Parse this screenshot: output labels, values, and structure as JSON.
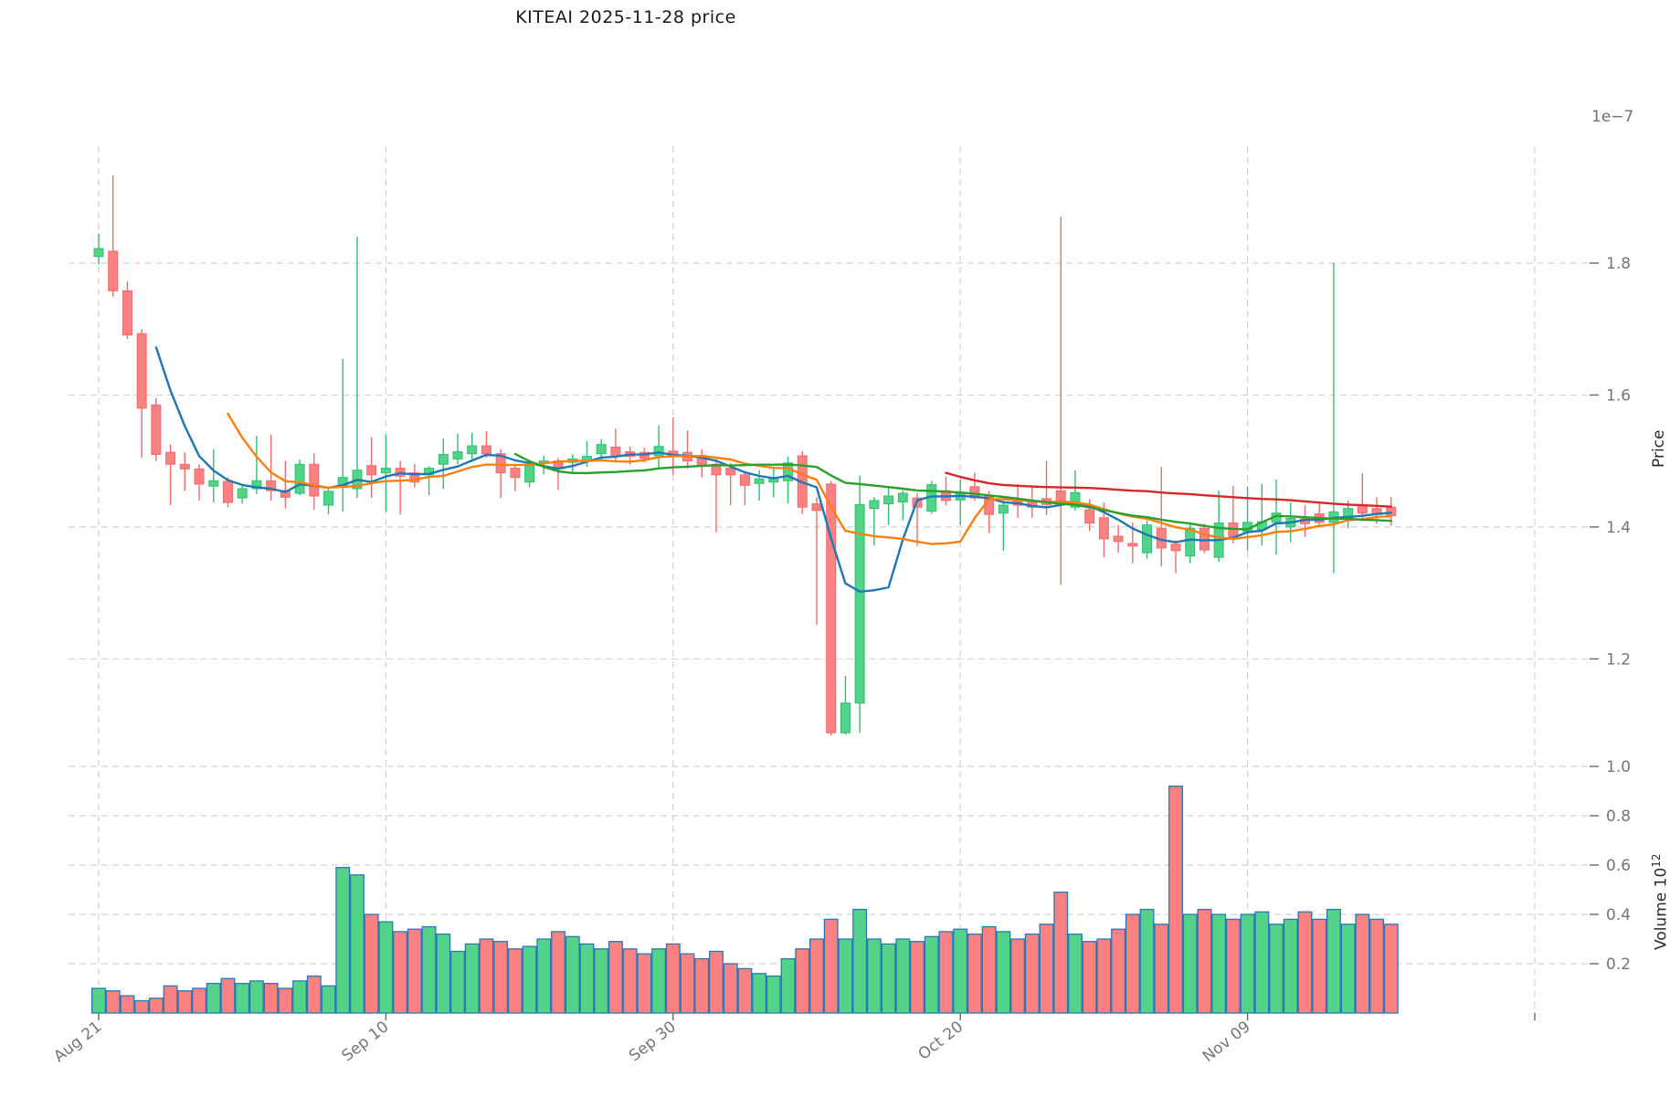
{
  "title": "KITEAI  2025-11-28  price",
  "price_axis": {
    "label": "Price",
    "offset_text": "1e−7",
    "tick_values": [
      1.8,
      1.6,
      1.4,
      1.2
    ]
  },
  "volume_axis": {
    "label": "Volume  10",
    "exponent": "12",
    "tick_values": [
      1.0,
      0.8,
      0.6,
      0.4,
      0.2
    ]
  },
  "colors": {
    "up_fill": "#53d388",
    "up_stroke": "#2fbf71",
    "down_fill": "#f98181",
    "down_stroke": "#f06c6c",
    "volume_edge": "#2878b8",
    "ma5": "#1f77b4",
    "ma10": "#ff7f0e",
    "ma30": "#2ca02c",
    "ma60": "#d62728",
    "grid": "#d2d2d2",
    "tick_text": "#757575",
    "tick_mark": "#707070"
  },
  "chart_data": {
    "type": "candlestick-with-volume",
    "title": "KITEAI  2025-11-28  price",
    "ylabel": "Price",
    "ylabel_volume": "Volume  10^12",
    "price_scale": "1e-7",
    "volume_scale": "10^12",
    "price_ylim": [
      1.0,
      1.95
    ],
    "volume_ylim": [
      0,
      1.05
    ],
    "grid": true,
    "x_ticks": [
      {
        "index": 0,
        "label": "Aug 21"
      },
      {
        "index": 20,
        "label": "Sep 10"
      },
      {
        "index": 40,
        "label": "Sep 30"
      },
      {
        "index": 60,
        "label": "Oct 20"
      },
      {
        "index": 80,
        "label": "Nov 09"
      },
      {
        "index": 100,
        "label": ""
      }
    ],
    "ma_windows": [
      5,
      10,
      30,
      60
    ],
    "ohlc": [
      [
        1.81,
        1.845,
        1.798,
        1.822
      ],
      [
        1.818,
        1.933,
        1.749,
        1.758
      ],
      [
        1.758,
        1.772,
        1.685,
        1.691
      ],
      [
        1.693,
        1.7,
        1.505,
        1.58
      ],
      [
        1.585,
        1.595,
        1.5,
        1.51
      ],
      [
        1.513,
        1.525,
        1.433,
        1.495
      ],
      [
        1.495,
        1.513,
        1.455,
        1.488
      ],
      [
        1.488,
        1.495,
        1.44,
        1.465
      ],
      [
        1.462,
        1.518,
        1.437,
        1.47
      ],
      [
        1.469,
        1.475,
        1.43,
        1.437
      ],
      [
        1.444,
        1.465,
        1.435,
        1.458
      ],
      [
        1.458,
        1.538,
        1.45,
        1.47
      ],
      [
        1.47,
        1.54,
        1.44,
        1.455
      ],
      [
        1.455,
        1.5,
        1.428,
        1.445
      ],
      [
        1.451,
        1.502,
        1.448,
        1.495
      ],
      [
        1.495,
        1.512,
        1.426,
        1.447
      ],
      [
        1.433,
        1.458,
        1.419,
        1.454
      ],
      [
        1.462,
        1.655,
        1.423,
        1.475
      ],
      [
        1.458,
        1.84,
        1.444,
        1.486
      ],
      [
        1.493,
        1.536,
        1.444,
        1.479
      ],
      [
        1.482,
        1.54,
        1.423,
        1.489
      ],
      [
        1.489,
        1.5,
        1.419,
        1.477
      ],
      [
        1.482,
        1.495,
        1.46,
        1.468
      ],
      [
        1.479,
        1.492,
        1.448,
        1.489
      ],
      [
        1.495,
        1.534,
        1.458,
        1.51
      ],
      [
        1.503,
        1.541,
        1.495,
        1.514
      ],
      [
        1.511,
        1.543,
        1.503,
        1.523
      ],
      [
        1.523,
        1.545,
        1.505,
        1.511
      ],
      [
        1.511,
        1.518,
        1.444,
        1.482
      ],
      [
        1.489,
        1.495,
        1.454,
        1.475
      ],
      [
        1.468,
        1.497,
        1.46,
        1.493
      ],
      [
        1.497,
        1.508,
        1.48,
        1.5
      ],
      [
        1.5,
        1.505,
        1.456,
        1.491
      ],
      [
        1.498,
        1.51,
        1.482,
        1.503
      ],
      [
        1.5,
        1.53,
        1.491,
        1.507
      ],
      [
        1.511,
        1.533,
        1.5,
        1.525
      ],
      [
        1.521,
        1.549,
        1.5,
        1.507
      ],
      [
        1.514,
        1.522,
        1.495,
        1.507
      ],
      [
        1.513,
        1.52,
        1.498,
        1.504
      ],
      [
        1.508,
        1.554,
        1.489,
        1.522
      ],
      [
        1.515,
        1.566,
        1.479,
        1.507
      ],
      [
        1.513,
        1.546,
        1.488,
        1.5
      ],
      [
        1.508,
        1.518,
        1.475,
        1.493
      ],
      [
        1.495,
        1.503,
        1.392,
        1.479
      ],
      [
        1.489,
        1.497,
        1.433,
        1.479
      ],
      [
        1.479,
        1.485,
        1.433,
        1.463
      ],
      [
        1.466,
        1.486,
        1.44,
        1.473
      ],
      [
        1.468,
        1.488,
        1.445,
        1.475
      ],
      [
        1.47,
        1.507,
        1.436,
        1.497
      ],
      [
        1.508,
        1.515,
        1.42,
        1.43
      ],
      [
        1.435,
        1.445,
        1.252,
        1.425
      ],
      [
        1.465,
        1.47,
        1.084,
        1.088
      ],
      [
        1.088,
        1.174,
        1.085,
        1.133
      ],
      [
        1.133,
        1.478,
        1.088,
        1.434
      ],
      [
        1.428,
        1.445,
        1.372,
        1.44
      ],
      [
        1.435,
        1.462,
        1.403,
        1.447
      ],
      [
        1.438,
        1.455,
        1.41,
        1.451
      ],
      [
        1.444,
        1.451,
        1.371,
        1.43
      ],
      [
        1.424,
        1.47,
        1.42,
        1.464
      ],
      [
        1.455,
        1.476,
        1.433,
        1.44
      ],
      [
        1.441,
        1.472,
        1.403,
        1.451
      ],
      [
        1.461,
        1.482,
        1.44,
        1.444
      ],
      [
        1.447,
        1.455,
        1.391,
        1.419
      ],
      [
        1.421,
        1.44,
        1.364,
        1.433
      ],
      [
        1.441,
        1.465,
        1.414,
        1.433
      ],
      [
        1.439,
        1.462,
        1.414,
        1.43
      ],
      [
        1.443,
        1.5,
        1.418,
        1.434
      ],
      [
        1.455,
        1.87,
        1.312,
        1.437
      ],
      [
        1.43,
        1.486,
        1.425,
        1.452
      ],
      [
        1.426,
        1.442,
        1.394,
        1.406
      ],
      [
        1.414,
        1.437,
        1.354,
        1.382
      ],
      [
        1.386,
        1.403,
        1.361,
        1.378
      ],
      [
        1.375,
        1.407,
        1.345,
        1.371
      ],
      [
        1.361,
        1.41,
        1.352,
        1.403
      ],
      [
        1.398,
        1.491,
        1.34,
        1.368
      ],
      [
        1.374,
        1.38,
        1.33,
        1.364
      ],
      [
        1.356,
        1.407,
        1.345,
        1.398
      ],
      [
        1.398,
        1.405,
        1.36,
        1.365
      ],
      [
        1.354,
        1.455,
        1.347,
        1.406
      ],
      [
        1.406,
        1.462,
        1.375,
        1.385
      ],
      [
        1.393,
        1.461,
        1.364,
        1.407
      ],
      [
        1.396,
        1.465,
        1.372,
        1.408
      ],
      [
        1.407,
        1.472,
        1.358,
        1.421
      ],
      [
        1.4,
        1.437,
        1.377,
        1.413
      ],
      [
        1.415,
        1.433,
        1.385,
        1.405
      ],
      [
        1.42,
        1.437,
        1.4,
        1.407
      ],
      [
        1.407,
        1.8,
        1.33,
        1.423
      ],
      [
        1.412,
        1.44,
        1.398,
        1.428
      ],
      [
        1.433,
        1.481,
        1.412,
        1.421
      ],
      [
        1.428,
        1.445,
        1.405,
        1.419
      ],
      [
        1.43,
        1.445,
        1.402,
        1.417
      ]
    ],
    "volume": [
      0.1,
      0.09,
      0.07,
      0.05,
      0.06,
      0.11,
      0.09,
      0.1,
      0.12,
      0.14,
      0.12,
      0.13,
      0.12,
      0.1,
      0.13,
      0.15,
      0.11,
      0.59,
      0.56,
      0.4,
      0.37,
      0.33,
      0.34,
      0.35,
      0.32,
      0.25,
      0.28,
      0.3,
      0.29,
      0.26,
      0.27,
      0.3,
      0.33,
      0.31,
      0.28,
      0.26,
      0.29,
      0.26,
      0.24,
      0.26,
      0.28,
      0.24,
      0.22,
      0.25,
      0.2,
      0.18,
      0.16,
      0.15,
      0.22,
      0.26,
      0.3,
      0.38,
      0.3,
      0.42,
      0.3,
      0.28,
      0.3,
      0.29,
      0.31,
      0.33,
      0.34,
      0.32,
      0.35,
      0.33,
      0.3,
      0.32,
      0.36,
      0.49,
      0.32,
      0.29,
      0.3,
      0.34,
      0.4,
      0.42,
      0.36,
      0.92,
      0.4,
      0.42,
      0.4,
      0.38,
      0.4,
      0.41,
      0.36,
      0.38,
      0.41,
      0.38,
      0.42,
      0.36,
      0.4,
      0.38,
      0.36
    ]
  }
}
